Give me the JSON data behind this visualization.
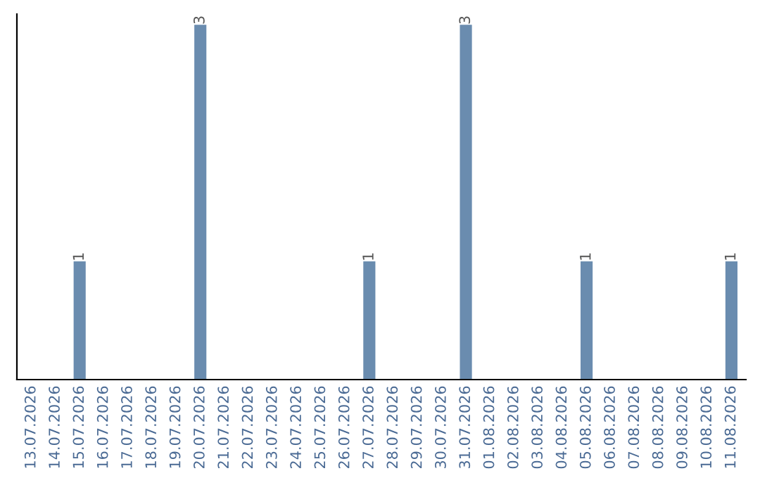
{
  "chart_data": {
    "type": "bar",
    "categories": [
      "13.07.2026",
      "14.07.2026",
      "15.07.2026",
      "16.07.2026",
      "17.07.2026",
      "18.07.2026",
      "19.07.2026",
      "20.07.2026",
      "21.07.2026",
      "22.07.2026",
      "23.07.2026",
      "24.07.2026",
      "25.07.2026",
      "26.07.2026",
      "27.07.2026",
      "28.07.2026",
      "29.07.2026",
      "30.07.2026",
      "31.07.2026",
      "01.08.2026",
      "02.08.2026",
      "03.08.2026",
      "04.08.2026",
      "05.08.2026",
      "06.08.2026",
      "07.08.2026",
      "08.08.2026",
      "09.08.2026",
      "10.08.2026",
      "11.08.2026"
    ],
    "values": [
      0,
      0,
      1,
      0,
      0,
      0,
      0,
      3,
      0,
      0,
      0,
      0,
      0,
      0,
      1,
      0,
      0,
      0,
      3,
      0,
      0,
      0,
      0,
      1,
      0,
      0,
      0,
      0,
      0,
      1
    ],
    "value_labels": [
      null,
      null,
      "1",
      null,
      null,
      null,
      null,
      "3",
      null,
      null,
      null,
      null,
      null,
      null,
      "1",
      null,
      null,
      null,
      "3",
      null,
      null,
      null,
      null,
      "1",
      null,
      null,
      null,
      null,
      null,
      "1"
    ],
    "color": "#6a8caf",
    "grid": false,
    "legend": false
  }
}
